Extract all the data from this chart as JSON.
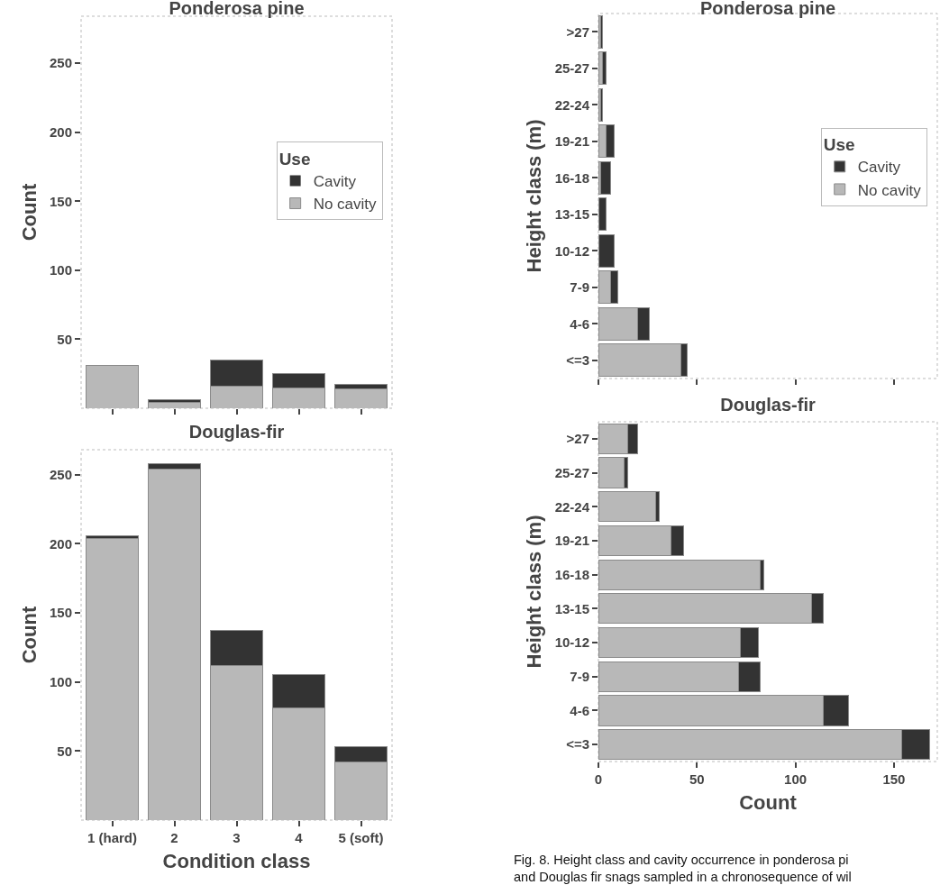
{
  "chart_data": [
    {
      "type": "bar",
      "stacked": true,
      "title": "Ponderosa pine",
      "ylabel": "Count",
      "legend_title": "Use",
      "legend": "right",
      "tick_labels": "y",
      "categories": [
        null,
        null,
        null,
        null,
        null
      ],
      "ylim": [
        0,
        284
      ],
      "yticks": [
        50,
        100,
        150,
        200,
        250
      ],
      "series": [
        {
          "name": "No cavity",
          "color": "#b8b8b8",
          "values": [
            31,
            4,
            16,
            15,
            14
          ]
        },
        {
          "name": "Cavity",
          "color": "#333333",
          "values": [
            0,
            2,
            19,
            10,
            3
          ]
        }
      ]
    },
    {
      "type": "bar",
      "stacked": true,
      "title": "Douglas-fir",
      "ylabel": "Count",
      "xlabel": "Condition class",
      "categories": [
        "1 (hard)",
        "2",
        "3",
        "4",
        "5 (soft)"
      ],
      "ylim": [
        0,
        268
      ],
      "yticks": [
        50,
        100,
        150,
        200,
        250
      ],
      "series": [
        {
          "color": "#b8b8b8",
          "values": [
            204,
            254,
            112,
            81,
            42
          ]
        },
        {
          "color": "#333333",
          "values": [
            2,
            4,
            25,
            24,
            11
          ]
        }
      ]
    },
    {
      "type": "bar",
      "stacked": true,
      "orientation": "horizontal",
      "title": "Ponderosa pine",
      "ylabel": "Height class (m)",
      "legend_title": "Use",
      "legend": "right",
      "tick_labels": "y",
      "categories": [
        ">27",
        "25-27",
        "22-24",
        "19-21",
        "16-18",
        "13-15",
        "10-12",
        "7-9",
        "4-6",
        "<=3"
      ],
      "xlim": [
        0,
        172
      ],
      "xticks": [
        {
          "value": 0,
          "label": null
        },
        {
          "value": 50,
          "label": null
        },
        {
          "value": 100,
          "label": null
        },
        {
          "value": 150,
          "label": null
        }
      ],
      "series": [
        {
          "name": "No cavity",
          "color": "#b8b8b8",
          "values": [
            1,
            2,
            1,
            4,
            1,
            0,
            0,
            6,
            20,
            42
          ]
        },
        {
          "name": "Cavity",
          "color": "#333333",
          "values": [
            1,
            2,
            1,
            4,
            5,
            4,
            8,
            4,
            6,
            3
          ]
        }
      ]
    },
    {
      "type": "bar",
      "stacked": true,
      "orientation": "horizontal",
      "title": "Douglas-fir",
      "ylabel": "Height class (m)",
      "xlabel": "Count",
      "categories": [
        ">27",
        "25-27",
        "22-24",
        "19-21",
        "16-18",
        "13-15",
        "10-12",
        "7-9",
        "4-6",
        "<=3"
      ],
      "xlim": [
        0,
        172
      ],
      "xticks": [
        0,
        50,
        100,
        150
      ],
      "annotations": [
        "Fig. 8. Height class and cavity occurrence in ponderosa pi\nand Douglas fir snags sampled in a chronosequence of wil"
      ],
      "series": [
        {
          "color": "#b8b8b8",
          "values": [
            15,
            13,
            29,
            37,
            82,
            108,
            72,
            71,
            114,
            154
          ]
        },
        {
          "color": "#333333",
          "values": [
            5,
            2,
            2,
            6,
            2,
            6,
            9,
            11,
            13,
            14
          ]
        }
      ]
    }
  ]
}
